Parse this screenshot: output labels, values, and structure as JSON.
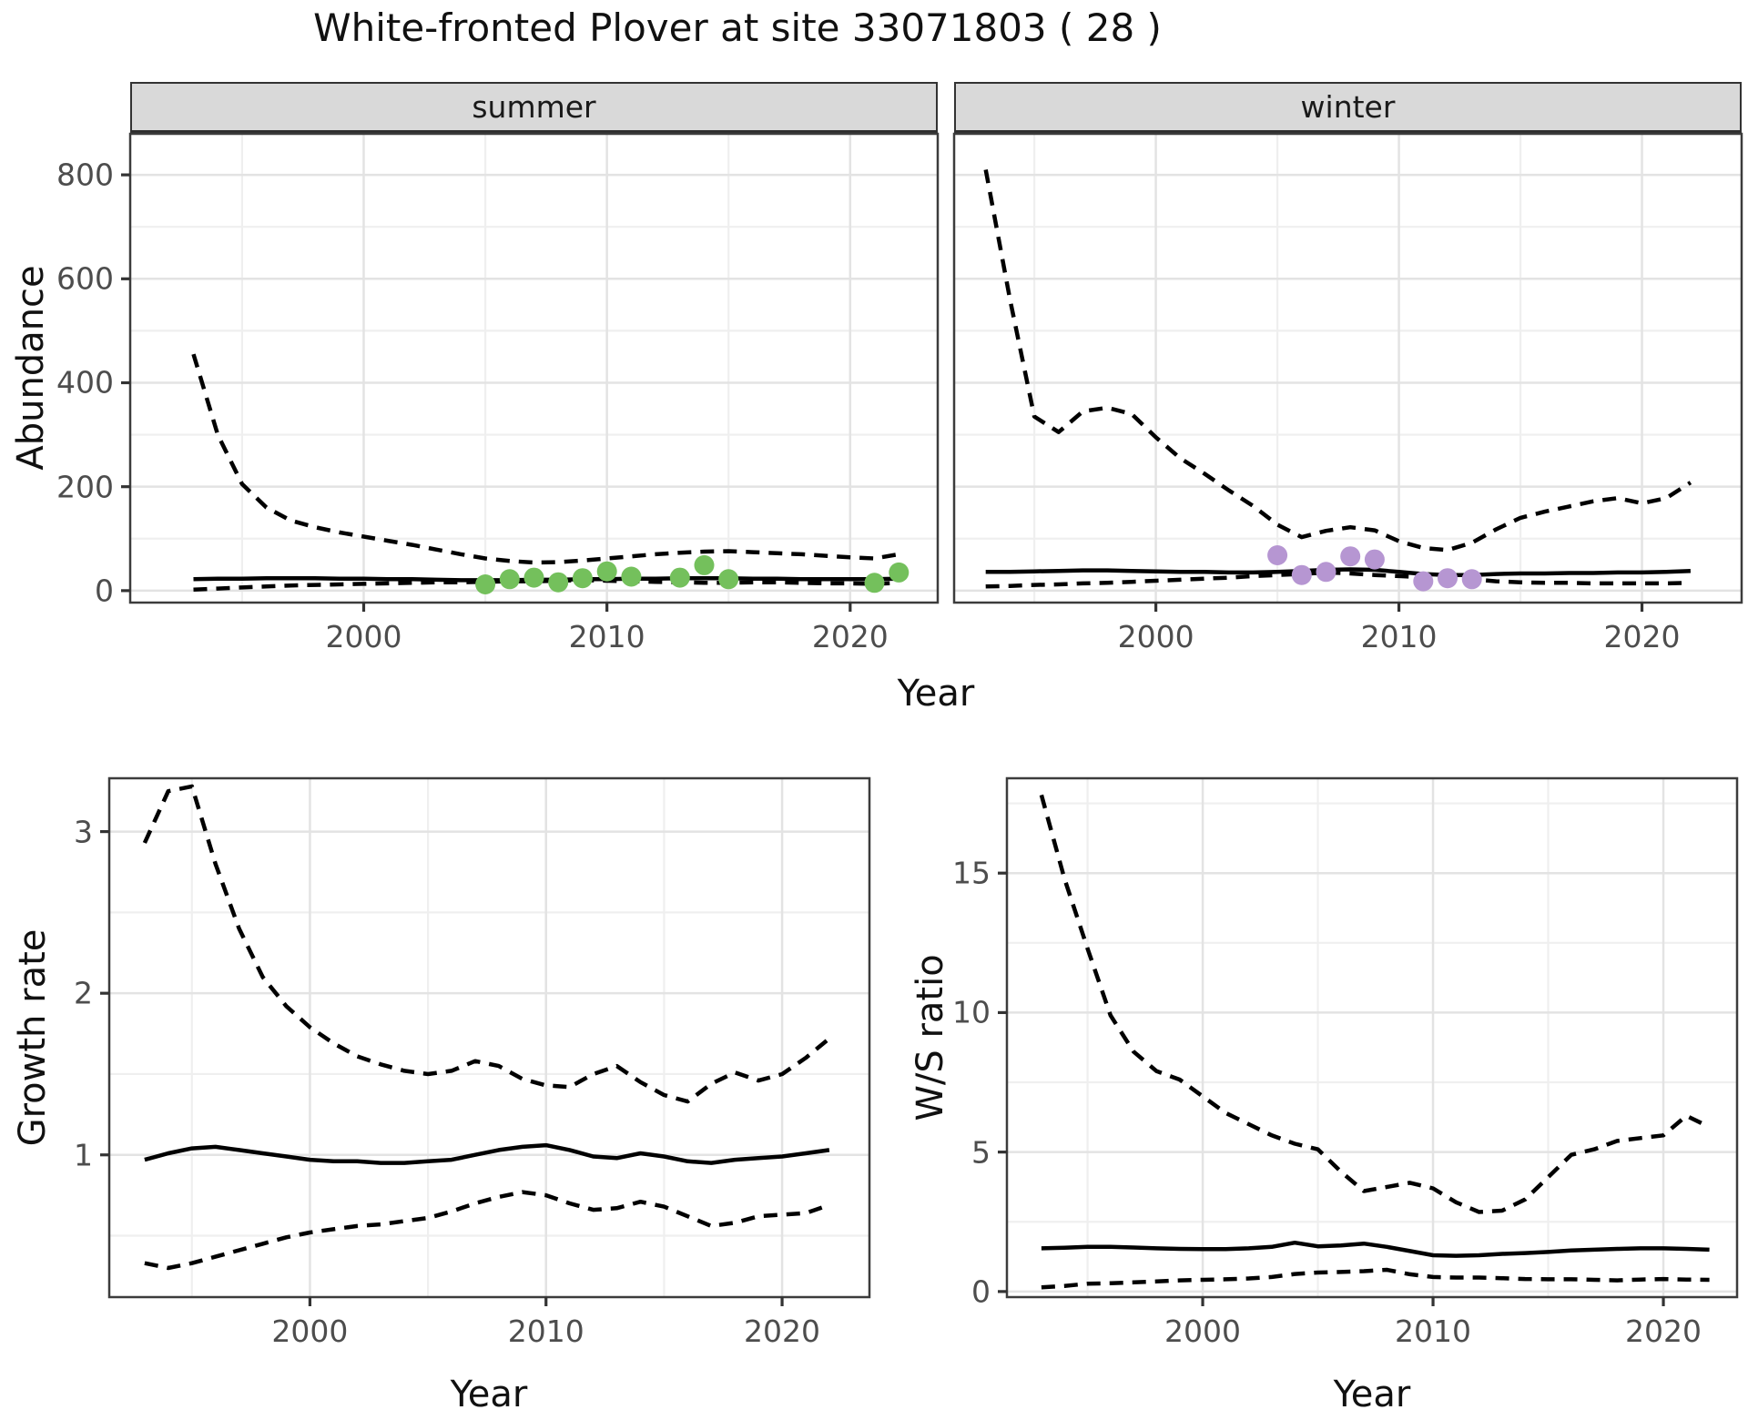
{
  "title": "White-fronted Plover at site 33071803 ( 28 )",
  "shared": {
    "xlabel": "Year",
    "x_ticks": [
      2000,
      2010,
      2020
    ],
    "x_minor": [
      1995,
      2005,
      2015
    ]
  },
  "colors": {
    "summer_point": "#74c05c",
    "winter_point": "#b696d2",
    "line": "#000000",
    "grid_major": "#e3e3e3",
    "grid_minor": "#efefef",
    "strip_bg": "#d9d9d9",
    "panel_border": "#3c3c3c",
    "tick_text": "#4d4d4d"
  },
  "facet_labels": {
    "summer": "summer",
    "winter": "winter"
  },
  "axis_titles": {
    "abundance": "Abundance",
    "growth": "Growth rate",
    "ws": "W/S ratio",
    "year": "Year"
  },
  "chart_data": [
    {
      "id": "summer",
      "type": "line",
      "strip": "summer",
      "ylabel": "Abundance",
      "xlabel": "Year",
      "xlim": [
        1990.4,
        2023.6
      ],
      "ylim": [
        -23,
        879
      ],
      "yticks": [
        0,
        200,
        400,
        600,
        800
      ],
      "yminor": [
        100,
        300,
        500,
        700
      ],
      "x": [
        1993,
        1994,
        1995,
        1996,
        1997,
        1998,
        1999,
        2000,
        2001,
        2002,
        2003,
        2004,
        2005,
        2006,
        2007,
        2008,
        2009,
        2010,
        2011,
        2012,
        2013,
        2014,
        2015,
        2016,
        2017,
        2018,
        2019,
        2020,
        2021,
        2022
      ],
      "series": [
        {
          "name": "upper-dashed",
          "style": "dashed",
          "values": [
            455,
            300,
            205,
            160,
            135,
            122,
            112,
            104,
            96,
            88,
            79,
            70,
            62,
            57,
            54,
            55,
            58,
            62,
            66,
            70,
            73,
            75,
            76,
            74,
            72,
            70,
            67,
            64,
            62,
            70
          ]
        },
        {
          "name": "solid-estimate",
          "style": "solid",
          "values": [
            22,
            23,
            23,
            24,
            24,
            24,
            23,
            23,
            22,
            22,
            21,
            20,
            20,
            20,
            21,
            21,
            22,
            22,
            23,
            23,
            24,
            24,
            24,
            23,
            23,
            22,
            22,
            22,
            22,
            23
          ]
        },
        {
          "name": "lower-dashed",
          "style": "dashed",
          "values": [
            2,
            4,
            6,
            8,
            10,
            11,
            12,
            13,
            14,
            15,
            16,
            16,
            17,
            18,
            18,
            19,
            20,
            19,
            18,
            17,
            16,
            15,
            15,
            16,
            16,
            15,
            14,
            14,
            13,
            15
          ]
        }
      ],
      "points": {
        "name": "summer-observations",
        "color_key": "summer_point",
        "x": [
          2005,
          2006,
          2007,
          2008,
          2009,
          2010,
          2011,
          2013,
          2014,
          2015,
          2021,
          2022
        ],
        "y": [
          12,
          22,
          25,
          16,
          24,
          37,
          27,
          25,
          49,
          22,
          15,
          35
        ]
      }
    },
    {
      "id": "winter",
      "type": "line",
      "strip": "winter",
      "ylabel": "Abundance",
      "xlabel": "Year",
      "xlim": [
        1991.7,
        2024.1
      ],
      "ylim": [
        -23,
        879
      ],
      "yticks": [
        0,
        200,
        400,
        600,
        800
      ],
      "yminor": [
        100,
        300,
        500,
        700
      ],
      "x": [
        1993,
        1994,
        1995,
        1996,
        1997,
        1998,
        1999,
        2000,
        2001,
        2002,
        2003,
        2004,
        2005,
        2006,
        2007,
        2008,
        2009,
        2010,
        2011,
        2012,
        2013,
        2014,
        2015,
        2016,
        2017,
        2018,
        2019,
        2020,
        2021,
        2022
      ],
      "series": [
        {
          "name": "upper-dashed",
          "style": "dashed",
          "values": [
            810,
            560,
            335,
            305,
            345,
            352,
            340,
            295,
            255,
            225,
            193,
            163,
            127,
            103,
            115,
            122,
            116,
            95,
            82,
            78,
            92,
            118,
            140,
            152,
            162,
            172,
            178,
            168,
            178,
            208
          ]
        },
        {
          "name": "solid-estimate",
          "style": "solid",
          "values": [
            36,
            36,
            37,
            38,
            39,
            39,
            38,
            37,
            36,
            36,
            35,
            35,
            36,
            38,
            40,
            41,
            40,
            36,
            32,
            30,
            30,
            32,
            33,
            33,
            34,
            34,
            35,
            35,
            36,
            38
          ]
        },
        {
          "name": "lower-dashed",
          "style": "dashed",
          "values": [
            8,
            9,
            11,
            12,
            14,
            15,
            17,
            19,
            21,
            23,
            25,
            28,
            30,
            32,
            35,
            33,
            30,
            28,
            26,
            24,
            22,
            18,
            16,
            15,
            15,
            14,
            14,
            14,
            14,
            15
          ]
        }
      ],
      "points": {
        "name": "winter-observations",
        "color_key": "winter_point",
        "x": [
          2005,
          2006,
          2007,
          2008,
          2009,
          2011,
          2012,
          2013
        ],
        "y": [
          68,
          30,
          36,
          66,
          60,
          18,
          24,
          22
        ]
      }
    },
    {
      "id": "growth",
      "type": "line",
      "strip": null,
      "ylabel": "Growth rate",
      "xlabel": "Year",
      "xlim": [
        1991.5,
        2023.7
      ],
      "ylim": [
        0.12,
        3.33
      ],
      "yticks": [
        1,
        2,
        3
      ],
      "yminor": [
        0.5,
        1.5,
        2.5
      ],
      "x": [
        1993,
        1994,
        1995,
        1996,
        1997,
        1998,
        1999,
        2000,
        2001,
        2002,
        2003,
        2004,
        2005,
        2006,
        2007,
        2008,
        2009,
        2010,
        2011,
        2012,
        2013,
        2014,
        2015,
        2016,
        2017,
        2018,
        2019,
        2020,
        2021,
        2022
      ],
      "series": [
        {
          "name": "upper-dashed",
          "style": "dashed",
          "values": [
            2.93,
            3.25,
            3.28,
            2.8,
            2.4,
            2.1,
            1.92,
            1.79,
            1.69,
            1.61,
            1.56,
            1.52,
            1.5,
            1.52,
            1.58,
            1.55,
            1.47,
            1.43,
            1.42,
            1.5,
            1.55,
            1.45,
            1.37,
            1.33,
            1.44,
            1.51,
            1.46,
            1.5,
            1.6,
            1.72
          ]
        },
        {
          "name": "solid-estimate",
          "style": "solid",
          "values": [
            0.97,
            1.01,
            1.04,
            1.05,
            1.03,
            1.01,
            0.99,
            0.97,
            0.96,
            0.96,
            0.95,
            0.95,
            0.96,
            0.97,
            1.0,
            1.03,
            1.05,
            1.06,
            1.03,
            0.99,
            0.98,
            1.01,
            0.99,
            0.96,
            0.95,
            0.97,
            0.98,
            0.99,
            1.01,
            1.03
          ]
        },
        {
          "name": "lower-dashed",
          "style": "dashed",
          "values": [
            0.33,
            0.3,
            0.33,
            0.37,
            0.41,
            0.45,
            0.49,
            0.52,
            0.54,
            0.56,
            0.57,
            0.59,
            0.61,
            0.65,
            0.7,
            0.74,
            0.77,
            0.75,
            0.7,
            0.66,
            0.67,
            0.71,
            0.68,
            0.62,
            0.56,
            0.58,
            0.62,
            0.63,
            0.64,
            0.69
          ]
        }
      ],
      "points": null
    },
    {
      "id": "ws",
      "type": "line",
      "strip": null,
      "ylabel": "W/S ratio",
      "xlabel": "Year",
      "xlim": [
        1991.5,
        2023.2
      ],
      "ylim": [
        -0.2,
        18.4
      ],
      "yticks": [
        0,
        5,
        10,
        15
      ],
      "yminor": [
        2.5,
        7.5,
        12.5,
        17.5
      ],
      "x": [
        1993,
        1994,
        1995,
        1996,
        1997,
        1998,
        1999,
        2000,
        2001,
        2002,
        2003,
        2004,
        2005,
        2006,
        2007,
        2008,
        2009,
        2010,
        2011,
        2012,
        2013,
        2014,
        2015,
        2016,
        2017,
        2018,
        2019,
        2020,
        2021,
        2022
      ],
      "series": [
        {
          "name": "upper-dashed",
          "style": "dashed",
          "values": [
            17.8,
            14.8,
            12.3,
            9.9,
            8.6,
            7.9,
            7.6,
            7.0,
            6.4,
            6.0,
            5.6,
            5.3,
            5.1,
            4.3,
            3.6,
            3.75,
            3.9,
            3.7,
            3.2,
            2.85,
            2.9,
            3.3,
            4.1,
            4.9,
            5.1,
            5.4,
            5.5,
            5.6,
            6.3,
            5.9
          ]
        },
        {
          "name": "solid-estimate",
          "style": "solid",
          "values": [
            1.55,
            1.57,
            1.6,
            1.6,
            1.58,
            1.55,
            1.53,
            1.52,
            1.52,
            1.55,
            1.6,
            1.75,
            1.62,
            1.65,
            1.72,
            1.6,
            1.45,
            1.3,
            1.28,
            1.3,
            1.35,
            1.38,
            1.42,
            1.47,
            1.5,
            1.53,
            1.55,
            1.55,
            1.53,
            1.5
          ]
        },
        {
          "name": "lower-dashed",
          "style": "dashed",
          "values": [
            0.15,
            0.2,
            0.28,
            0.3,
            0.33,
            0.36,
            0.4,
            0.42,
            0.44,
            0.47,
            0.52,
            0.63,
            0.68,
            0.7,
            0.73,
            0.78,
            0.62,
            0.52,
            0.5,
            0.5,
            0.48,
            0.45,
            0.44,
            0.44,
            0.42,
            0.4,
            0.43,
            0.45,
            0.43,
            0.42
          ]
        }
      ],
      "points": null
    }
  ]
}
